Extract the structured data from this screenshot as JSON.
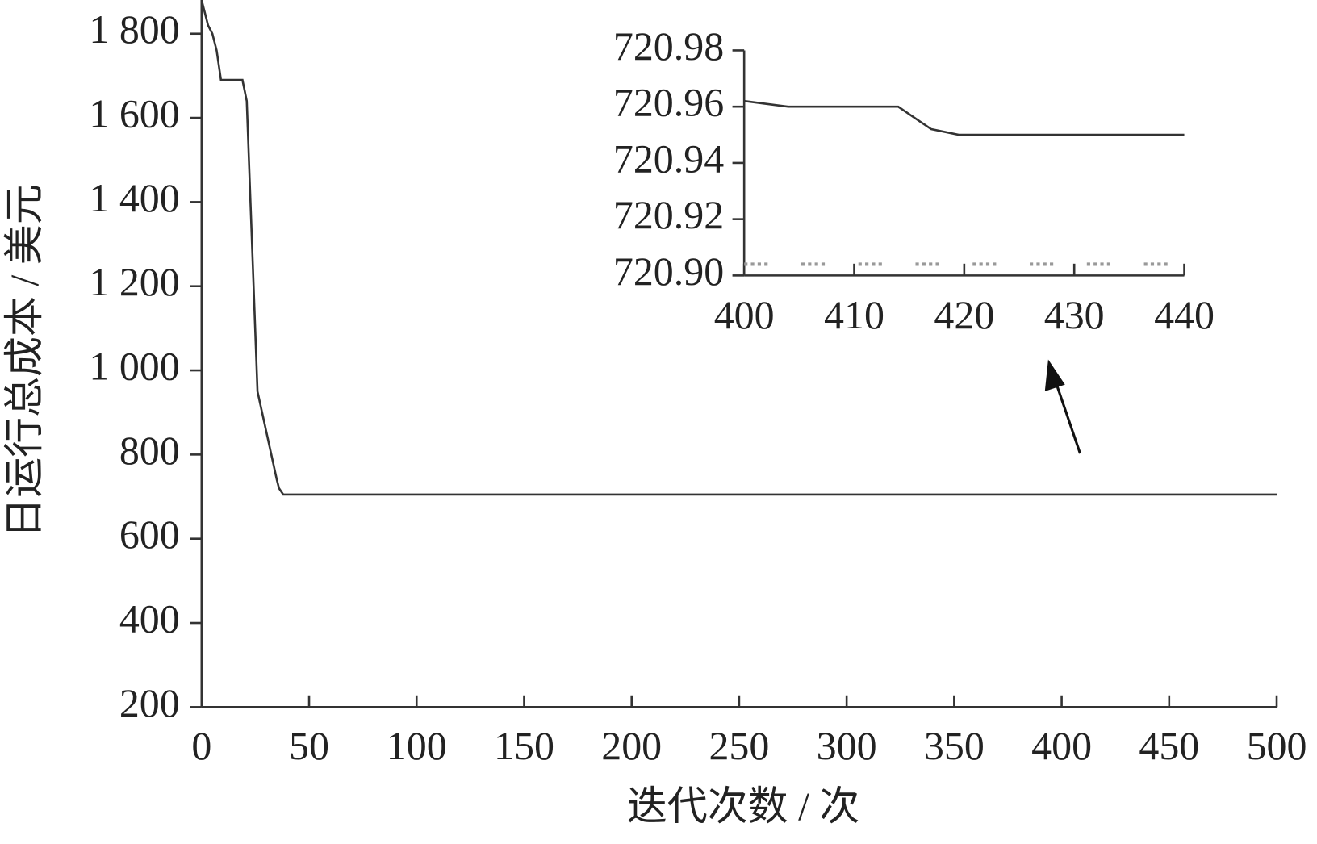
{
  "chart_data": [
    {
      "type": "line",
      "x_label": "迭代次数 / 次",
      "y_label": "日运行总成本 / 美元",
      "xlim": [
        0,
        500
      ],
      "ylim": [
        200,
        1880
      ],
      "xticks": [
        0,
        50,
        100,
        150,
        200,
        250,
        300,
        350,
        400,
        450,
        500
      ],
      "yticks": [
        200,
        400,
        600,
        800,
        {
          "value": 1000,
          "label": "1 000"
        },
        {
          "value": 1200,
          "label": "1 200"
        },
        {
          "value": 1400,
          "label": "1 400"
        },
        {
          "value": 1600,
          "label": "1 600"
        },
        {
          "value": 1800,
          "label": "1 800"
        }
      ],
      "series": [
        {
          "color": "#333333",
          "line_style": "solid",
          "x": [
            0,
            1,
            3,
            5,
            7,
            9,
            19,
            21,
            26,
            35,
            36,
            38,
            500
          ],
          "values": [
            1880,
            1860,
            1820,
            1800,
            1760,
            1690,
            1690,
            1640,
            950,
            740,
            720,
            705,
            705
          ]
        }
      ]
    },
    {
      "type": "line",
      "xlim": [
        400,
        440
      ],
      "ylim": [
        720.9,
        720.98
      ],
      "xticks": [
        400,
        410,
        420,
        430,
        440
      ],
      "yticks": [
        {
          "value": 720.9,
          "label": "720.90"
        },
        720.92,
        720.94,
        720.96,
        720.98
      ],
      "series": [
        {
          "color": "#333333",
          "line_style": "solid",
          "x": [
            400,
            404,
            414,
            417,
            419.5,
            440
          ],
          "values": [
            720.962,
            720.96,
            720.96,
            720.952,
            720.95,
            720.95
          ]
        },
        {
          "color": "#999999",
          "line_style": "dotted",
          "x": [
            400,
            440
          ],
          "values": [
            720.904,
            720.904
          ]
        }
      ]
    }
  ]
}
